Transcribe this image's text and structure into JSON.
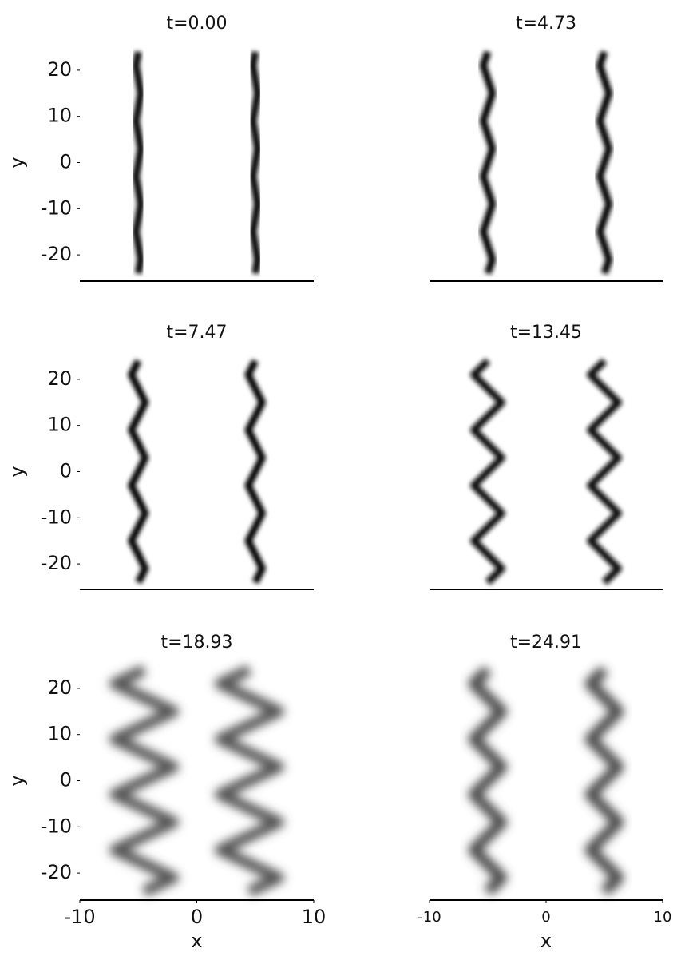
{
  "chart_data": [
    {
      "type": "line",
      "title": "t=0.00",
      "ylabel": "y",
      "y": [
        -24,
        -21,
        -18,
        -15,
        -12,
        -9,
        -6,
        -3,
        0,
        3,
        6,
        9,
        12,
        15,
        18,
        21,
        24
      ],
      "series": [
        {
          "color": "#000000",
          "values": [
            -5,
            -4.8,
            -5,
            -5.2,
            -5,
            -4.8,
            -5,
            -5.2,
            -5,
            -4.8,
            -5,
            -5.2,
            -5,
            -4.8,
            -5,
            -5.2,
            -5
          ]
        },
        {
          "color": "#000000",
          "values": [
            5,
            5.2,
            5,
            4.8,
            5,
            5.2,
            5,
            4.8,
            5,
            5.2,
            5,
            4.8,
            5,
            5.2,
            5,
            4.8,
            5
          ]
        }
      ],
      "xlim": [
        -10,
        10
      ],
      "ylim": [
        -25,
        25
      ],
      "yticks": [
        -20,
        -10,
        0,
        10,
        20
      ]
    },
    {
      "type": "line",
      "title": "t=4.73",
      "y": [
        -24,
        -21,
        -18,
        -15,
        -12,
        -9,
        -6,
        -3,
        0,
        3,
        6,
        9,
        12,
        15,
        18,
        21,
        24
      ],
      "series": [
        {
          "color": "#000000",
          "values": [
            -5,
            -4.6,
            -5,
            -5.4,
            -5,
            -4.6,
            -5,
            -5.4,
            -5,
            -4.6,
            -5,
            -5.4,
            -5,
            -4.6,
            -5,
            -5.4,
            -5
          ]
        },
        {
          "color": "#000000",
          "values": [
            5,
            5.4,
            5,
            4.6,
            5,
            5.4,
            5,
            4.6,
            5,
            5.4,
            5,
            4.6,
            5,
            5.4,
            5,
            4.6,
            5
          ]
        }
      ],
      "xlim": [
        -10,
        10
      ],
      "ylim": [
        -25,
        25
      ]
    },
    {
      "type": "line",
      "title": "t=7.47",
      "ylabel": "y",
      "y": [
        -24,
        -21,
        -18,
        -15,
        -12,
        -9,
        -6,
        -3,
        0,
        3,
        6,
        9,
        12,
        15,
        18,
        21,
        24
      ],
      "series": [
        {
          "color": "#000000",
          "values": [
            -5,
            -4.4,
            -5,
            -5.6,
            -5,
            -4.4,
            -5,
            -5.6,
            -5,
            -4.4,
            -5,
            -5.6,
            -5,
            -4.4,
            -5,
            -5.6,
            -5
          ]
        },
        {
          "color": "#000000",
          "values": [
            5,
            5.6,
            5,
            4.4,
            5,
            5.6,
            5,
            4.4,
            5,
            5.6,
            5,
            4.4,
            5,
            5.6,
            5,
            4.4,
            5
          ]
        }
      ],
      "xlim": [
        -10,
        10
      ],
      "ylim": [
        -25,
        25
      ],
      "yticks": [
        -20,
        -10,
        0,
        10,
        20
      ]
    },
    {
      "type": "line",
      "title": "t=13.45",
      "y": [
        -24,
        -21,
        -18,
        -15,
        -12,
        -9,
        -6,
        -3,
        0,
        3,
        6,
        9,
        12,
        15,
        18,
        21,
        24
      ],
      "series": [
        {
          "color": "#111111",
          "values": [
            -5,
            -3.8,
            -5,
            -6.2,
            -5,
            -3.8,
            -5,
            -6.2,
            -5,
            -3.8,
            -5,
            -6.2,
            -5,
            -3.8,
            -5,
            -6.2,
            -5
          ]
        },
        {
          "color": "#111111",
          "values": [
            5,
            6.2,
            5,
            3.8,
            5,
            6.2,
            5,
            3.8,
            5,
            6.2,
            5,
            3.8,
            5,
            6.2,
            5,
            3.8,
            5
          ]
        }
      ],
      "xlim": [
        -10,
        10
      ],
      "ylim": [
        -25,
        25
      ]
    },
    {
      "type": "line",
      "title": "t=18.93",
      "ylabel": "y",
      "xlabel": "x",
      "y": [
        -24,
        -21,
        -18,
        -15,
        -12,
        -9,
        -6,
        -3,
        0,
        3,
        6,
        9,
        12,
        15,
        18,
        21,
        24
      ],
      "series": [
        {
          "color": "#555555",
          "values": [
            -4.5,
            -2,
            -4.5,
            -7,
            -4.5,
            -2,
            -4.5,
            -7,
            -4.5,
            -2,
            -4.5,
            -7,
            -4.5,
            -2,
            -4.5,
            -7,
            -4.5
          ]
        },
        {
          "color": "#555555",
          "values": [
            4.5,
            7,
            4.5,
            2,
            4.5,
            7,
            4.5,
            2,
            4.5,
            7,
            4.5,
            2,
            4.5,
            7,
            4.5,
            2,
            4.5
          ]
        }
      ],
      "xlim": [
        -10,
        10
      ],
      "ylim": [
        -25,
        25
      ],
      "xticks": [
        -10,
        0,
        10
      ],
      "yticks": [
        -20,
        -10,
        0,
        10,
        20
      ]
    },
    {
      "type": "line",
      "title": "t=24.91",
      "xlabel": "x",
      "y": [
        -24,
        -21,
        -18,
        -15,
        -12,
        -9,
        -6,
        -3,
        0,
        3,
        6,
        9,
        12,
        15,
        18,
        21,
        24
      ],
      "series": [
        {
          "color": "#444444",
          "values": [
            -5,
            -3.8,
            -5,
            -6.2,
            -5,
            -3.8,
            -5,
            -6.2,
            -5,
            -3.8,
            -5,
            -6.2,
            -5,
            -3.8,
            -5,
            -6.2,
            -5
          ]
        },
        {
          "color": "#444444",
          "values": [
            5,
            6.2,
            5,
            3.8,
            5,
            6.2,
            5,
            3.8,
            5,
            6.2,
            5,
            3.8,
            5,
            6.2,
            5,
            3.8,
            5
          ]
        }
      ],
      "xlim": [
        -10,
        10
      ],
      "ylim": [
        -25,
        25
      ],
      "xticks": [
        -10,
        0,
        10
      ]
    }
  ]
}
